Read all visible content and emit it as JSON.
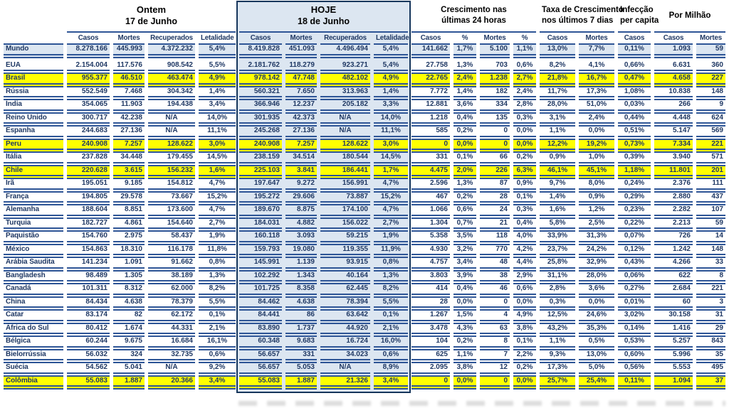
{
  "colors": {
    "line": "#2e5596",
    "navy": "#1f3864",
    "lightblue": "#dce6f1",
    "yellow": "#ffff00",
    "boxbg": "#dce6f1",
    "boxborder": "#16365c",
    "artifact": "#bcbcbc"
  },
  "chart_data": {
    "type": "table",
    "title": "",
    "groups": [
      {
        "id": "ontem",
        "title_line1": "Ontem",
        "title_line2": "17 de Junho",
        "columns": [
          "Casos",
          "Mortes",
          "Recuperados",
          "Letalidade"
        ]
      },
      {
        "id": "hoje",
        "title_line1": "HOJE",
        "title_line2": "18 de Junho",
        "columns": [
          "Casos",
          "Mortes",
          "Recuperados",
          "Letalidade"
        ]
      },
      {
        "id": "crescimento-24h",
        "title_line1": "Crescimento nas",
        "title_line2": "últimas 24 horas",
        "columns": [
          "Casos",
          "%",
          "Mortes",
          "%"
        ]
      },
      {
        "id": "taxa-7-dias",
        "title_line1": "Taxa de Crescimento",
        "title_line2": "nos últimos 7 dias",
        "columns": [
          "Casos",
          "Mortes"
        ]
      },
      {
        "id": "infeccao-per-capita",
        "title_line1": "Infecção",
        "title_line2": "per capita",
        "columns": [
          "Casos"
        ]
      },
      {
        "id": "por-milhao",
        "title_line1": "Por Milhão",
        "title_line2": "",
        "columns": [
          "Casos",
          "Mortes"
        ]
      }
    ],
    "rows": [
      {
        "country": "Mundo",
        "style": "world",
        "values": [
          "8.278.166",
          "445.993",
          "4.372.232",
          "5,4%",
          "8.419.828",
          "451.093",
          "4.496.494",
          "5,4%",
          "141.662",
          "1,7%",
          "5.100",
          "1,1%",
          "13,0%",
          "7,7%",
          "0,11%",
          "1.093",
          "59"
        ]
      },
      {
        "country": "EUA",
        "style": "normal",
        "values": [
          "2.154.004",
          "117.576",
          "908.542",
          "5,5%",
          "2.181.762",
          "118.279",
          "923.271",
          "5,4%",
          "27.758",
          "1,3%",
          "703",
          "0,6%",
          "8,2%",
          "4,1%",
          "0,66%",
          "6.631",
          "360"
        ]
      },
      {
        "country": "Brasil",
        "style": "highlight",
        "values": [
          "955.377",
          "46.510",
          "463.474",
          "4,9%",
          "978.142",
          "47.748",
          "482.102",
          "4,9%",
          "22.765",
          "2,4%",
          "1.238",
          "2,7%",
          "21,8%",
          "16,7%",
          "0,47%",
          "4.658",
          "227"
        ]
      },
      {
        "country": "Rússia",
        "style": "normal",
        "values": [
          "552.549",
          "7.468",
          "304.342",
          "1,4%",
          "560.321",
          "7.650",
          "313.963",
          "1,4%",
          "7.772",
          "1,4%",
          "182",
          "2,4%",
          "11,7%",
          "17,3%",
          "1,08%",
          "10.838",
          "148"
        ]
      },
      {
        "country": "Índia",
        "style": "normal",
        "values": [
          "354.065",
          "11.903",
          "194.438",
          "3,4%",
          "366.946",
          "12.237",
          "205.182",
          "3,3%",
          "12.881",
          "3,6%",
          "334",
          "2,8%",
          "28,0%",
          "51,0%",
          "0,03%",
          "266",
          "9"
        ]
      },
      {
        "country": "Reino Unido",
        "style": "normal",
        "values": [
          "300.717",
          "42.238",
          "N/A",
          "14,0%",
          "301.935",
          "42.373",
          "N/A",
          "14,0%",
          "1.218",
          "0,4%",
          "135",
          "0,3%",
          "3,1%",
          "2,4%",
          "0,44%",
          "4.448",
          "624"
        ]
      },
      {
        "country": "Espanha",
        "style": "normal",
        "values": [
          "244.683",
          "27.136",
          "N/A",
          "11,1%",
          "245.268",
          "27.136",
          "N/A",
          "11,1%",
          "585",
          "0,2%",
          "0",
          "0,0%",
          "1,1%",
          "0,0%",
          "0,51%",
          "5.147",
          "569"
        ]
      },
      {
        "country": "Peru",
        "style": "highlight",
        "values": [
          "240.908",
          "7.257",
          "128.622",
          "3,0%",
          "240.908",
          "7.257",
          "128.622",
          "3,0%",
          "0",
          "0,0%",
          "0",
          "0,0%",
          "12,2%",
          "19,2%",
          "0,73%",
          "7.334",
          "221"
        ]
      },
      {
        "country": "Itália",
        "style": "normal",
        "values": [
          "237.828",
          "34.448",
          "179.455",
          "14,5%",
          "238.159",
          "34.514",
          "180.544",
          "14,5%",
          "331",
          "0,1%",
          "66",
          "0,2%",
          "0,9%",
          "1,0%",
          "0,39%",
          "3.940",
          "571"
        ]
      },
      {
        "country": "Chile",
        "style": "highlight",
        "values": [
          "220.628",
          "3.615",
          "156.232",
          "1,6%",
          "225.103",
          "3.841",
          "186.441",
          "1,7%",
          "4.475",
          "2,0%",
          "226",
          "6,3%",
          "46,1%",
          "45,1%",
          "1,18%",
          "11.801",
          "201"
        ]
      },
      {
        "country": "Irã",
        "style": "normal",
        "values": [
          "195.051",
          "9.185",
          "154.812",
          "4,7%",
          "197.647",
          "9.272",
          "156.991",
          "4,7%",
          "2.596",
          "1,3%",
          "87",
          "0,9%",
          "9,7%",
          "8,0%",
          "0,24%",
          "2.376",
          "111"
        ]
      },
      {
        "country": "França",
        "style": "normal",
        "values": [
          "194.805",
          "29.578",
          "73.667",
          "15,2%",
          "195.272",
          "29.606",
          "73.887",
          "15,2%",
          "467",
          "0,2%",
          "28",
          "0,1%",
          "1,4%",
          "0,9%",
          "0,29%",
          "2.880",
          "437"
        ]
      },
      {
        "country": "Alemanha",
        "style": "normal",
        "values": [
          "188.604",
          "8.851",
          "173.600",
          "4,7%",
          "189.670",
          "8.875",
          "174.100",
          "4,7%",
          "1.066",
          "0,6%",
          "24",
          "0,3%",
          "1,6%",
          "1,2%",
          "0,23%",
          "2.282",
          "107"
        ]
      },
      {
        "country": "Turquia",
        "style": "normal",
        "values": [
          "182.727",
          "4.861",
          "154.640",
          "2,7%",
          "184.031",
          "4.882",
          "156.022",
          "2,7%",
          "1.304",
          "0,7%",
          "21",
          "0,4%",
          "5,8%",
          "2,5%",
          "0,22%",
          "2.213",
          "59"
        ]
      },
      {
        "country": "Paquistão",
        "style": "normal",
        "values": [
          "154.760",
          "2.975",
          "58.437",
          "1,9%",
          "160.118",
          "3.093",
          "59.215",
          "1,9%",
          "5.358",
          "3,5%",
          "118",
          "4,0%",
          "33,9%",
          "31,3%",
          "0,07%",
          "726",
          "14"
        ]
      },
      {
        "country": "México",
        "style": "normal",
        "values": [
          "154.863",
          "18.310",
          "116.178",
          "11,8%",
          "159.793",
          "19.080",
          "119.355",
          "11,9%",
          "4.930",
          "3,2%",
          "770",
          "4,2%",
          "23,7%",
          "24,2%",
          "0,12%",
          "1.242",
          "148"
        ]
      },
      {
        "country": "Arábia Saudita",
        "style": "normal",
        "values": [
          "141.234",
          "1.091",
          "91.662",
          "0,8%",
          "145.991",
          "1.139",
          "93.915",
          "0,8%",
          "4.757",
          "3,4%",
          "48",
          "4,4%",
          "25,8%",
          "32,9%",
          "0,43%",
          "4.266",
          "33"
        ]
      },
      {
        "country": "Bangladesh",
        "style": "normal",
        "values": [
          "98.489",
          "1.305",
          "38.189",
          "1,3%",
          "102.292",
          "1.343",
          "40.164",
          "1,3%",
          "3.803",
          "3,9%",
          "38",
          "2,9%",
          "31,1%",
          "28,0%",
          "0,06%",
          "622",
          "8"
        ]
      },
      {
        "country": "Canadá",
        "style": "normal",
        "values": [
          "101.311",
          "8.312",
          "62.000",
          "8,2%",
          "101.725",
          "8.358",
          "62.445",
          "8,2%",
          "414",
          "0,4%",
          "46",
          "0,6%",
          "2,8%",
          "3,6%",
          "0,27%",
          "2.684",
          "221"
        ]
      },
      {
        "country": "China",
        "style": "normal",
        "values": [
          "84.434",
          "4.638",
          "78.379",
          "5,5%",
          "84.462",
          "4.638",
          "78.394",
          "5,5%",
          "28",
          "0,0%",
          "0",
          "0,0%",
          "0,3%",
          "0,0%",
          "0,01%",
          "60",
          "3"
        ]
      },
      {
        "country": "Catar",
        "style": "normal",
        "values": [
          "83.174",
          "82",
          "62.172",
          "0,1%",
          "84.441",
          "86",
          "63.642",
          "0,1%",
          "1.267",
          "1,5%",
          "4",
          "4,9%",
          "12,5%",
          "24,6%",
          "3,02%",
          "30.158",
          "31"
        ]
      },
      {
        "country": "África do Sul",
        "style": "normal",
        "values": [
          "80.412",
          "1.674",
          "44.331",
          "2,1%",
          "83.890",
          "1.737",
          "44.920",
          "2,1%",
          "3.478",
          "4,3%",
          "63",
          "3,8%",
          "43,2%",
          "35,3%",
          "0,14%",
          "1.416",
          "29"
        ]
      },
      {
        "country": "Bélgica",
        "style": "normal",
        "values": [
          "60.244",
          "9.675",
          "16.684",
          "16,1%",
          "60.348",
          "9.683",
          "16.724",
          "16,0%",
          "104",
          "0,2%",
          "8",
          "0,1%",
          "1,1%",
          "0,5%",
          "0,53%",
          "5.257",
          "843"
        ]
      },
      {
        "country": "Bielorrússia",
        "style": "normal",
        "values": [
          "56.032",
          "324",
          "32.735",
          "0,6%",
          "56.657",
          "331",
          "34.023",
          "0,6%",
          "625",
          "1,1%",
          "7",
          "2,2%",
          "9,3%",
          "13,0%",
          "0,60%",
          "5.996",
          "35"
        ]
      },
      {
        "country": "Suécia",
        "style": "normal",
        "values": [
          "54.562",
          "5.041",
          "N/A",
          "9,2%",
          "56.657",
          "5.053",
          "N/A",
          "8,9%",
          "2.095",
          "3,8%",
          "12",
          "0,2%",
          "17,3%",
          "5,0%",
          "0,56%",
          "5.553",
          "495"
        ]
      },
      {
        "country": "Colômbia",
        "style": "highlight",
        "values": [
          "55.083",
          "1.887",
          "20.366",
          "3,4%",
          "55.083",
          "1.887",
          "21.326",
          "3,4%",
          "0",
          "0,0%",
          "0",
          "0,0%",
          "25,7%",
          "25,4%",
          "0,11%",
          "1.094",
          "37"
        ]
      }
    ]
  }
}
